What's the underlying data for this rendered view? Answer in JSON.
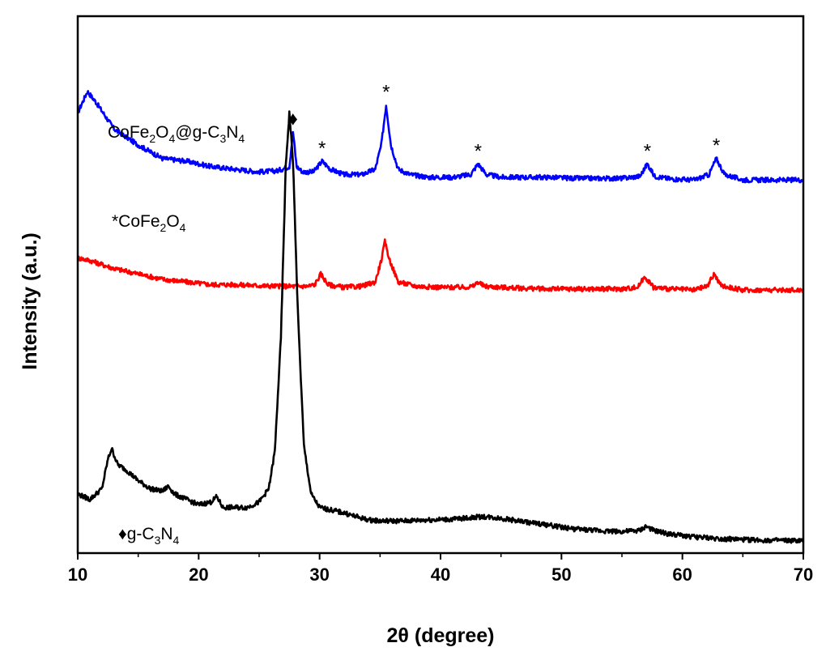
{
  "chart_data": {
    "type": "line",
    "xlabel": "2θ (degree)",
    "ylabel": "Intensity (a.u.)",
    "xlim": [
      10,
      70
    ],
    "x_ticks": [
      "10",
      "20",
      "30",
      "40",
      "50",
      "60",
      "70"
    ],
    "y_ticks_labeled": false,
    "grid": false,
    "legend": "inline labels",
    "series": [
      {
        "name": "CoFe2O4@g-C3N4",
        "label_parts": [
          "CoFe",
          "2",
          "O",
          "4",
          "@g-C",
          "3",
          "N",
          "4"
        ],
        "color": "#0000ff",
        "x": [
          10,
          10.8,
          11.5,
          13,
          15,
          17,
          19,
          21,
          23,
          25,
          26.5,
          27.5,
          27.8,
          28.1,
          28.6,
          29.5,
          30.2,
          30.9,
          32,
          33.5,
          34.6,
          35.1,
          35.5,
          35.9,
          36.5,
          37.5,
          39,
          41,
          42.5,
          43.1,
          43.8,
          45,
          47,
          49,
          51,
          53,
          55,
          56.5,
          57.1,
          57.7,
          59,
          61,
          62.2,
          62.8,
          63.5,
          65,
          67,
          69,
          70
        ],
        "y": [
          8.2,
          8.6,
          8.4,
          7.9,
          7.6,
          7.35,
          7.3,
          7.2,
          7.15,
          7.1,
          7.12,
          7.2,
          7.85,
          7.2,
          7.1,
          7.1,
          7.3,
          7.15,
          7.05,
          7.05,
          7.15,
          7.6,
          8.35,
          7.6,
          7.15,
          7.05,
          7.0,
          7.0,
          7.05,
          7.25,
          7.05,
          7.0,
          7.0,
          7.0,
          6.98,
          6.98,
          6.98,
          7.02,
          7.25,
          7.02,
          6.97,
          6.95,
          7.05,
          7.35,
          7.05,
          6.95,
          6.95,
          6.95,
          6.95
        ]
      },
      {
        "name": "CoFe2O4",
        "label_parts": [
          "*CoFe",
          "2",
          "O",
          "4"
        ],
        "color": "#ff0000",
        "x": [
          10,
          11,
          13,
          15,
          17,
          19,
          21,
          23,
          25,
          27,
          29,
          29.6,
          30.1,
          30.7,
          32,
          33.5,
          34.6,
          35.1,
          35.4,
          35.8,
          36.5,
          38,
          40,
          42,
          42.7,
          43.1,
          43.6,
          45,
          47,
          49,
          51,
          53,
          55,
          56.3,
          56.9,
          57.6,
          59,
          61,
          62.1,
          62.6,
          63.2,
          65,
          67,
          69,
          70
        ],
        "y": [
          5.5,
          5.45,
          5.3,
          5.2,
          5.1,
          5.05,
          5.0,
          5.0,
          4.98,
          4.97,
          4.97,
          5.0,
          5.2,
          5.0,
          4.95,
          4.97,
          5.05,
          5.45,
          5.8,
          5.45,
          5.05,
          4.97,
          4.95,
          4.95,
          4.97,
          5.05,
          4.97,
          4.95,
          4.93,
          4.92,
          4.92,
          4.92,
          4.92,
          4.95,
          5.15,
          4.95,
          4.92,
          4.9,
          4.98,
          5.2,
          4.98,
          4.9,
          4.9,
          4.9,
          4.9
        ]
      },
      {
        "name": "g-C3N4",
        "label_parts": [
          "♦g-C",
          "3",
          "N",
          "4"
        ],
        "color": "#000000",
        "x": [
          10,
          11,
          12,
          12.5,
          12.8,
          13.3,
          14,
          15,
          16,
          17,
          17.5,
          18,
          19,
          20,
          21,
          21.5,
          22,
          23,
          24,
          25,
          25.8,
          26.3,
          26.8,
          27.2,
          27.5,
          27.8,
          28.2,
          28.7,
          29.3,
          30,
          31,
          32,
          33,
          34,
          35,
          37,
          39,
          41,
          42,
          43.5,
          45,
          47,
          49,
          51,
          53,
          55,
          56.5,
          57,
          57.6,
          59,
          61,
          63,
          65,
          67,
          69,
          70
        ],
        "y": [
          1.1,
          1.0,
          1.2,
          1.75,
          1.95,
          1.65,
          1.55,
          1.35,
          1.2,
          1.15,
          1.25,
          1.1,
          1.0,
          0.9,
          0.95,
          1.05,
          0.85,
          0.85,
          0.85,
          0.95,
          1.2,
          1.9,
          4.0,
          7.2,
          8.2,
          7.3,
          4.5,
          2.0,
          1.1,
          0.85,
          0.8,
          0.75,
          0.68,
          0.62,
          0.6,
          0.6,
          0.62,
          0.63,
          0.65,
          0.68,
          0.65,
          0.58,
          0.52,
          0.45,
          0.42,
          0.4,
          0.42,
          0.5,
          0.42,
          0.35,
          0.3,
          0.27,
          0.25,
          0.24,
          0.23,
          0.23
        ]
      }
    ],
    "annotations": [
      {
        "text": "♦",
        "x": 27.8,
        "series": "CoFe2O4@g-C3N4"
      },
      {
        "text": "*",
        "x": 30.2,
        "series": "CoFe2O4@g-C3N4"
      },
      {
        "text": "*",
        "x": 35.5,
        "series": "CoFe2O4@g-C3N4"
      },
      {
        "text": "*",
        "x": 43.1,
        "series": "CoFe2O4@g-C3N4"
      },
      {
        "text": "*",
        "x": 57.1,
        "series": "CoFe2O4@g-C3N4"
      },
      {
        "text": "*",
        "x": 62.8,
        "series": "CoFe2O4@g-C3N4"
      }
    ]
  }
}
